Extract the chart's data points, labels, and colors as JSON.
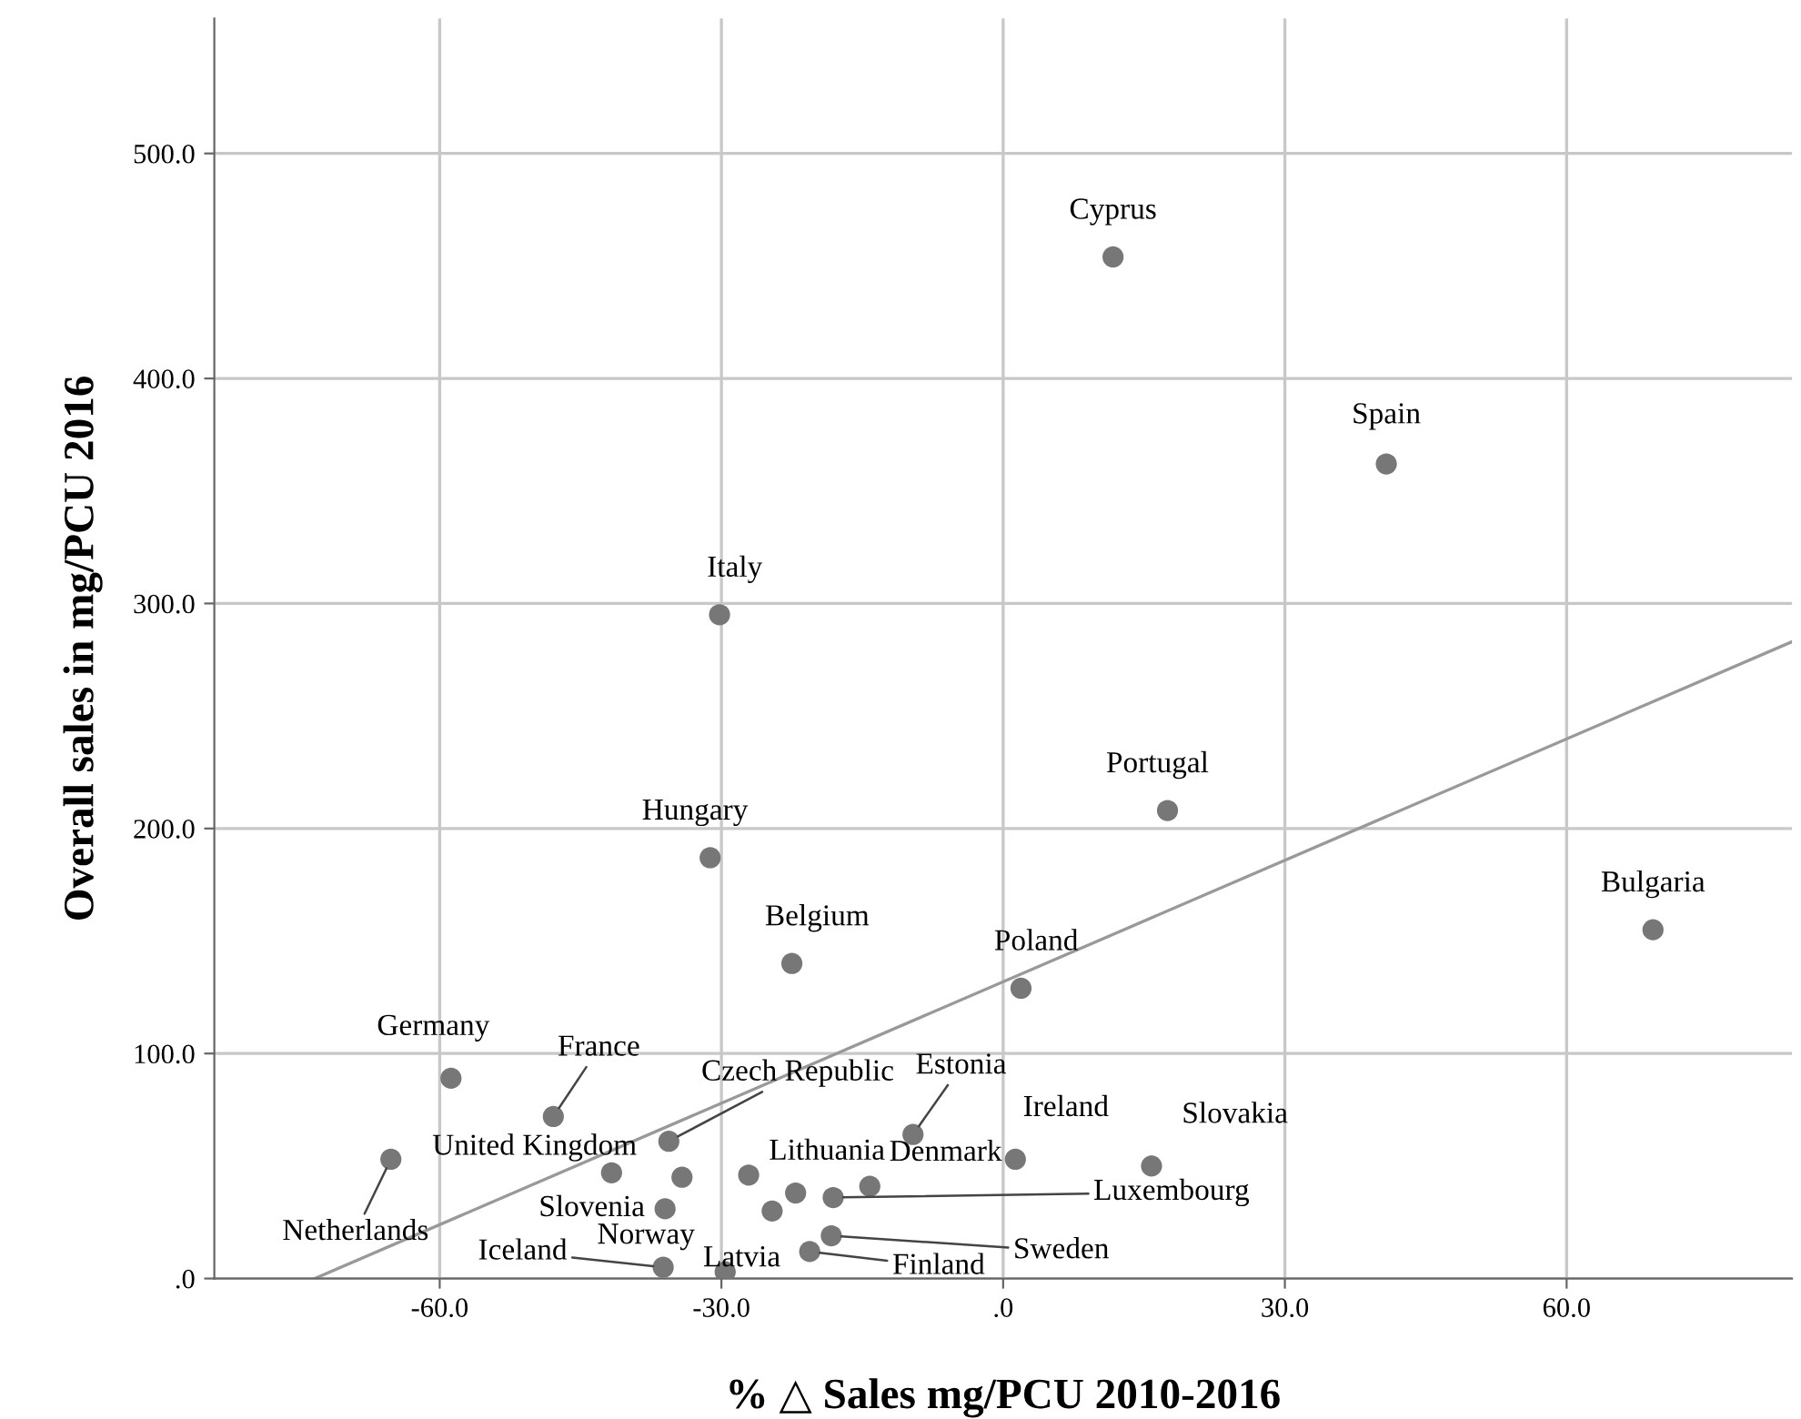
{
  "chart_data": {
    "type": "scatter",
    "xlabel": "% △ Sales mg/PCU 2010-2016",
    "ylabel": "Overall sales in mg/PCU 2016",
    "xlim": [
      -84,
      84
    ],
    "ylim": [
      0,
      560
    ],
    "xticks": [
      {
        "value": -60,
        "label": "-60.0"
      },
      {
        "value": -30,
        "label": "-30.0"
      },
      {
        "value": 0,
        "label": ".0"
      },
      {
        "value": 30,
        "label": "30.0"
      },
      {
        "value": 60,
        "label": "60.0"
      }
    ],
    "yticks": [
      {
        "value": 0,
        "label": ".0"
      },
      {
        "value": 100,
        "label": "100.0"
      },
      {
        "value": 200,
        "label": "200.0"
      },
      {
        "value": 300,
        "label": "300.0"
      },
      {
        "value": 400,
        "label": "400.0"
      },
      {
        "value": 500,
        "label": "500.0"
      }
    ],
    "grid": true,
    "legend": false,
    "series": [
      {
        "marker": "circle",
        "color": "#777777",
        "x": [
          11.7,
          40.8,
          -30.2,
          17.5,
          -31.2,
          -22.5,
          1.9,
          69.2,
          -58.8,
          -47.9,
          -35.6,
          -9.6,
          1.3,
          15.8,
          -65.2,
          -41.7,
          -36.0,
          -36.2,
          -29.6,
          -24.6,
          -27.1,
          -14.2,
          -18.1,
          -20.6,
          -18.3,
          -34.2,
          -22.1
        ],
        "values": [
          454,
          362,
          295,
          208,
          187,
          140,
          129,
          155,
          89,
          72,
          61,
          64,
          53,
          50,
          53,
          47,
          31,
          5,
          3,
          30,
          46,
          41,
          36,
          12,
          19,
          45,
          38
        ]
      },
      {
        "type": "line",
        "color": "#999999",
        "x": [
          -73.3,
          84
        ],
        "values": [
          0,
          283
        ]
      }
    ],
    "annotations": [
      {
        "text": "Cyprus",
        "x": 11.7,
        "y": 454
      },
      {
        "text": "Spain",
        "x": 40.8,
        "y": 362
      },
      {
        "text": "Italy",
        "x": -30.2,
        "y": 295
      },
      {
        "text": "Portugal",
        "x": 17.5,
        "y": 208
      },
      {
        "text": "Hungary",
        "x": -31.2,
        "y": 187
      },
      {
        "text": "Belgium",
        "x": -22.5,
        "y": 140
      },
      {
        "text": "Poland",
        "x": 1.9,
        "y": 129
      },
      {
        "text": "Bulgaria",
        "x": 69.2,
        "y": 155
      },
      {
        "text": "Germany",
        "x": -58.8,
        "y": 89
      },
      {
        "text": "France",
        "x": -47.9,
        "y": 72
      },
      {
        "text": "Czech Republic",
        "x": -35.6,
        "y": 61
      },
      {
        "text": "Estonia",
        "x": -9.6,
        "y": 64
      },
      {
        "text": "Ireland",
        "x": 1.3,
        "y": 53
      },
      {
        "text": "Slovakia",
        "x": 15.8,
        "y": 50
      },
      {
        "text": "Netherlands",
        "x": -65.2,
        "y": 53
      },
      {
        "text": "United Kingdom",
        "x": -41.7,
        "y": 47
      },
      {
        "text": "Slovenia",
        "x": -36.0,
        "y": 31
      },
      {
        "text": "Iceland",
        "x": -36.2,
        "y": 5
      },
      {
        "text": "Norway",
        "x": -29.6,
        "y": 3
      },
      {
        "text": "Latvia",
        "x": -24.6,
        "y": 30
      },
      {
        "text": "Lithuania",
        "x": -27.1,
        "y": 46
      },
      {
        "text": "Denmark",
        "x": -14.2,
        "y": 41
      },
      {
        "text": "Luxembourg",
        "x": -18.1,
        "y": 36
      },
      {
        "text": "Finland",
        "x": -20.6,
        "y": 12
      },
      {
        "text": "Sweden",
        "x": -18.3,
        "y": 19
      }
    ]
  }
}
